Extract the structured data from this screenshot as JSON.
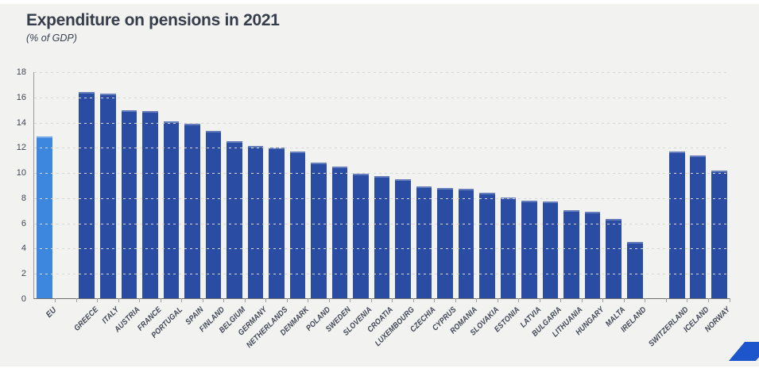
{
  "title": "Expenditure on pensions in 2021",
  "subtitle": "(% of GDP)",
  "colors": {
    "page_background": "#ffffff",
    "panel_background": "#f2f2f1",
    "bar_default": "#2b4ca3",
    "bar_eu": "#3e87de",
    "title_text": "#363d4b",
    "axis_text": "#40454f",
    "gridline": "#d8d8d6",
    "axis_line": "#9b9b9b",
    "baseline": "#6e6e6e",
    "logo_blue": "#1d55cc"
  },
  "chart_data": {
    "type": "bar",
    "title": "Expenditure on pensions in 2021",
    "subtitle": "(% of GDP)",
    "ylabel": "% of GDP",
    "ylim": [
      0,
      18
    ],
    "yticks": [
      0,
      2,
      4,
      6,
      8,
      10,
      12,
      14,
      16,
      18
    ],
    "grid": "horizontal dashed",
    "legend": "none",
    "x_label_rotation": -45,
    "groups": [
      {
        "name": "eu-aggregate",
        "color": "#3e87de",
        "bars": [
          {
            "label": "EU",
            "value": 12.9,
            "bold": true
          }
        ]
      },
      {
        "name": "eu-member-states",
        "color": "#2b4ca3",
        "bars": [
          {
            "label": "GREECE",
            "value": 16.4
          },
          {
            "label": "ITALY",
            "value": 16.3
          },
          {
            "label": "AUSTRIA",
            "value": 15.0
          },
          {
            "label": "FRANCE",
            "value": 14.9
          },
          {
            "label": "PORTUGAL",
            "value": 14.1
          },
          {
            "label": "SPAIN",
            "value": 13.9
          },
          {
            "label": "FINLAND",
            "value": 13.3
          },
          {
            "label": "BELGIUM",
            "value": 12.5
          },
          {
            "label": "GERMANY",
            "value": 12.1
          },
          {
            "label": "NETHERLANDS",
            "value": 12.0
          },
          {
            "label": "DENMARK",
            "value": 11.7
          },
          {
            "label": "POLAND",
            "value": 10.8
          },
          {
            "label": "SWEDEN",
            "value": 10.5
          },
          {
            "label": "SLOVENIA",
            "value": 9.9
          },
          {
            "label": "CROATIA",
            "value": 9.7
          },
          {
            "label": "LUXEMBOURG",
            "value": 9.5
          },
          {
            "label": "CZECHIA",
            "value": 8.9
          },
          {
            "label": "CYPRUS",
            "value": 8.8
          },
          {
            "label": "ROMANIA",
            "value": 8.7
          },
          {
            "label": "SLOVAKIA",
            "value": 8.4
          },
          {
            "label": "ESTONIA",
            "value": 8.0
          },
          {
            "label": "LATVIA",
            "value": 7.8
          },
          {
            "label": "BULGARIA",
            "value": 7.7
          },
          {
            "label": "LITHUANIA",
            "value": 7.0
          },
          {
            "label": "HUNGARY",
            "value": 6.9
          },
          {
            "label": "MALTA",
            "value": 6.3
          },
          {
            "label": "IRELAND",
            "value": 4.5
          }
        ]
      },
      {
        "name": "efta-countries",
        "color": "#2b4ca3",
        "bars": [
          {
            "label": "SWITZERLAND",
            "value": 11.7
          },
          {
            "label": "ICELAND",
            "value": 11.4
          },
          {
            "label": "NORWAY",
            "value": 10.2
          }
        ]
      }
    ]
  },
  "logo": {
    "name": "blue-slash-logo"
  }
}
